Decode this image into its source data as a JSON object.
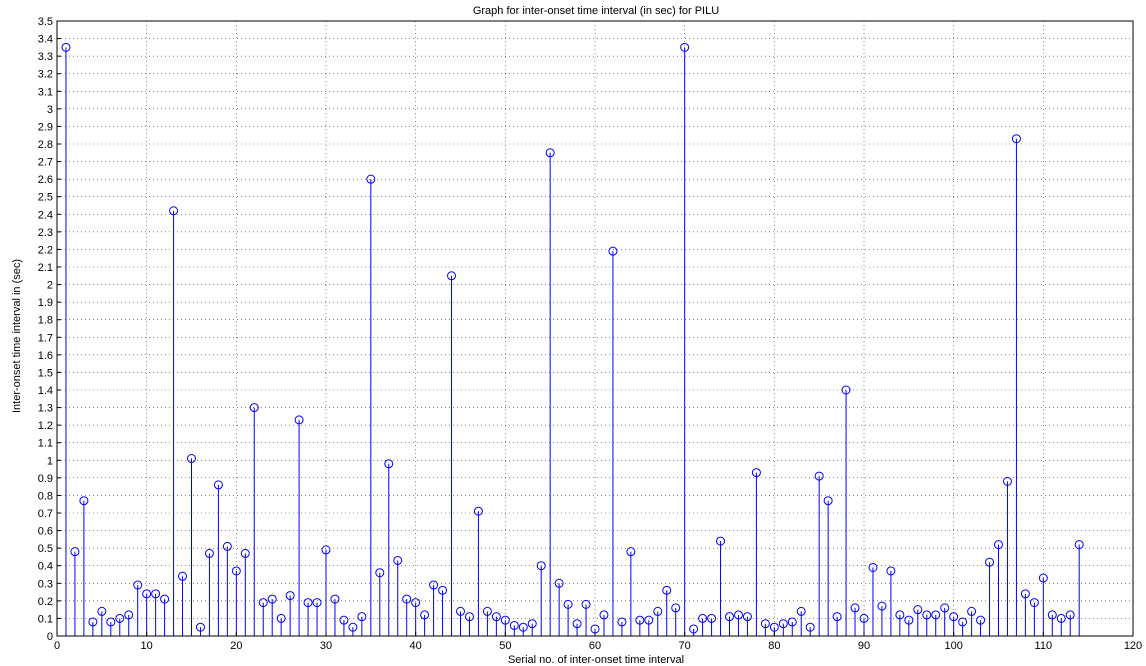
{
  "chart_data": {
    "type": "stem",
    "title": "Graph for inter-onset time interval (in sec) for PILU",
    "xlabel": "Serial no. of inter-onset time interval",
    "ylabel": "Inter-onset time interval in (sec)",
    "xlim": [
      0,
      120
    ],
    "ylim": [
      0,
      3.5
    ],
    "xticks": [
      0,
      10,
      20,
      30,
      40,
      50,
      60,
      70,
      80,
      90,
      100,
      110,
      120
    ],
    "yticks": [
      0,
      0.1,
      0.2,
      0.3,
      0.4,
      0.5,
      0.6,
      0.7,
      0.8,
      0.9,
      1,
      1.1,
      1.2,
      1.3,
      1.4,
      1.5,
      1.6,
      1.7,
      1.8,
      1.9,
      2,
      2.1,
      2.2,
      2.3,
      2.4,
      2.5,
      2.6,
      2.7,
      2.8,
      2.9,
      3,
      3.1,
      3.2,
      3.3,
      3.4,
      3.5
    ],
    "ytick_labels": [
      "0",
      "0.1",
      "0.2",
      "0.3",
      "0.4",
      "0.5",
      "0.6",
      "0.7",
      "0.8",
      "0.9",
      "1",
      "1.1",
      "1.2",
      "1.3",
      "1.4",
      "1.5",
      "1.6",
      "1.7",
      "1.8",
      "1.9",
      "2",
      "2.1",
      "2.2",
      "2.3",
      "2.4",
      "2.5",
      "2.6",
      "2.7",
      "2.8",
      "2.9",
      "3",
      "3.1",
      "3.2",
      "3.3",
      "3.4",
      "3.5"
    ],
    "grid": true,
    "color": "#0000ff",
    "x": [
      1,
      2,
      3,
      4,
      5,
      6,
      7,
      8,
      9,
      10,
      11,
      12,
      13,
      14,
      15,
      16,
      17,
      18,
      19,
      20,
      21,
      22,
      23,
      24,
      25,
      26,
      27,
      28,
      29,
      30,
      31,
      32,
      33,
      34,
      35,
      36,
      37,
      38,
      39,
      40,
      41,
      42,
      43,
      44,
      45,
      46,
      47,
      48,
      49,
      50,
      51,
      52,
      53,
      54,
      55,
      56,
      57,
      58,
      59,
      60,
      61,
      62,
      63,
      64,
      65,
      66,
      67,
      68,
      69,
      70,
      71,
      72,
      73,
      74,
      75,
      76,
      77,
      78,
      79,
      80,
      81,
      82,
      83,
      84,
      85,
      86,
      87,
      88,
      89,
      90,
      91,
      92,
      93,
      94,
      95,
      96,
      97,
      98,
      99,
      100,
      101,
      102,
      103,
      104,
      105,
      106,
      107,
      108,
      109,
      110,
      111,
      112,
      113,
      114
    ],
    "values": [
      3.35,
      0.48,
      0.77,
      0.08,
      0.14,
      0.08,
      0.1,
      0.12,
      0.29,
      0.24,
      0.24,
      0.21,
      2.42,
      0.34,
      1.01,
      0.05,
      0.47,
      0.86,
      0.51,
      0.37,
      0.47,
      1.3,
      0.19,
      0.21,
      0.1,
      0.23,
      1.23,
      0.19,
      0.19,
      0.49,
      0.21,
      0.09,
      0.05,
      0.11,
      2.6,
      0.36,
      0.98,
      0.43,
      0.21,
      0.19,
      0.12,
      0.29,
      0.26,
      2.05,
      0.14,
      0.11,
      0.71,
      0.14,
      0.11,
      0.09,
      0.06,
      0.05,
      0.07,
      0.4,
      2.75,
      0.3,
      0.18,
      0.07,
      0.18,
      0.04,
      0.12,
      2.19,
      0.08,
      0.48,
      0.09,
      0.09,
      0.14,
      0.26,
      0.16,
      3.35,
      0.04,
      0.1,
      0.1,
      0.54,
      0.11,
      0.12,
      0.11,
      0.93,
      0.07,
      0.05,
      0.07,
      0.08,
      0.14,
      0.05,
      0.91,
      0.77,
      0.11,
      1.4,
      0.16,
      0.1,
      0.39,
      0.17,
      0.37,
      0.12,
      0.09,
      0.15,
      0.12,
      0.12,
      0.16,
      0.11,
      0.08,
      0.14,
      0.09,
      0.42,
      0.52,
      0.88,
      2.83,
      0.24,
      0.19,
      0.33,
      0.12,
      0.1,
      0.12,
      0.52
    ]
  }
}
